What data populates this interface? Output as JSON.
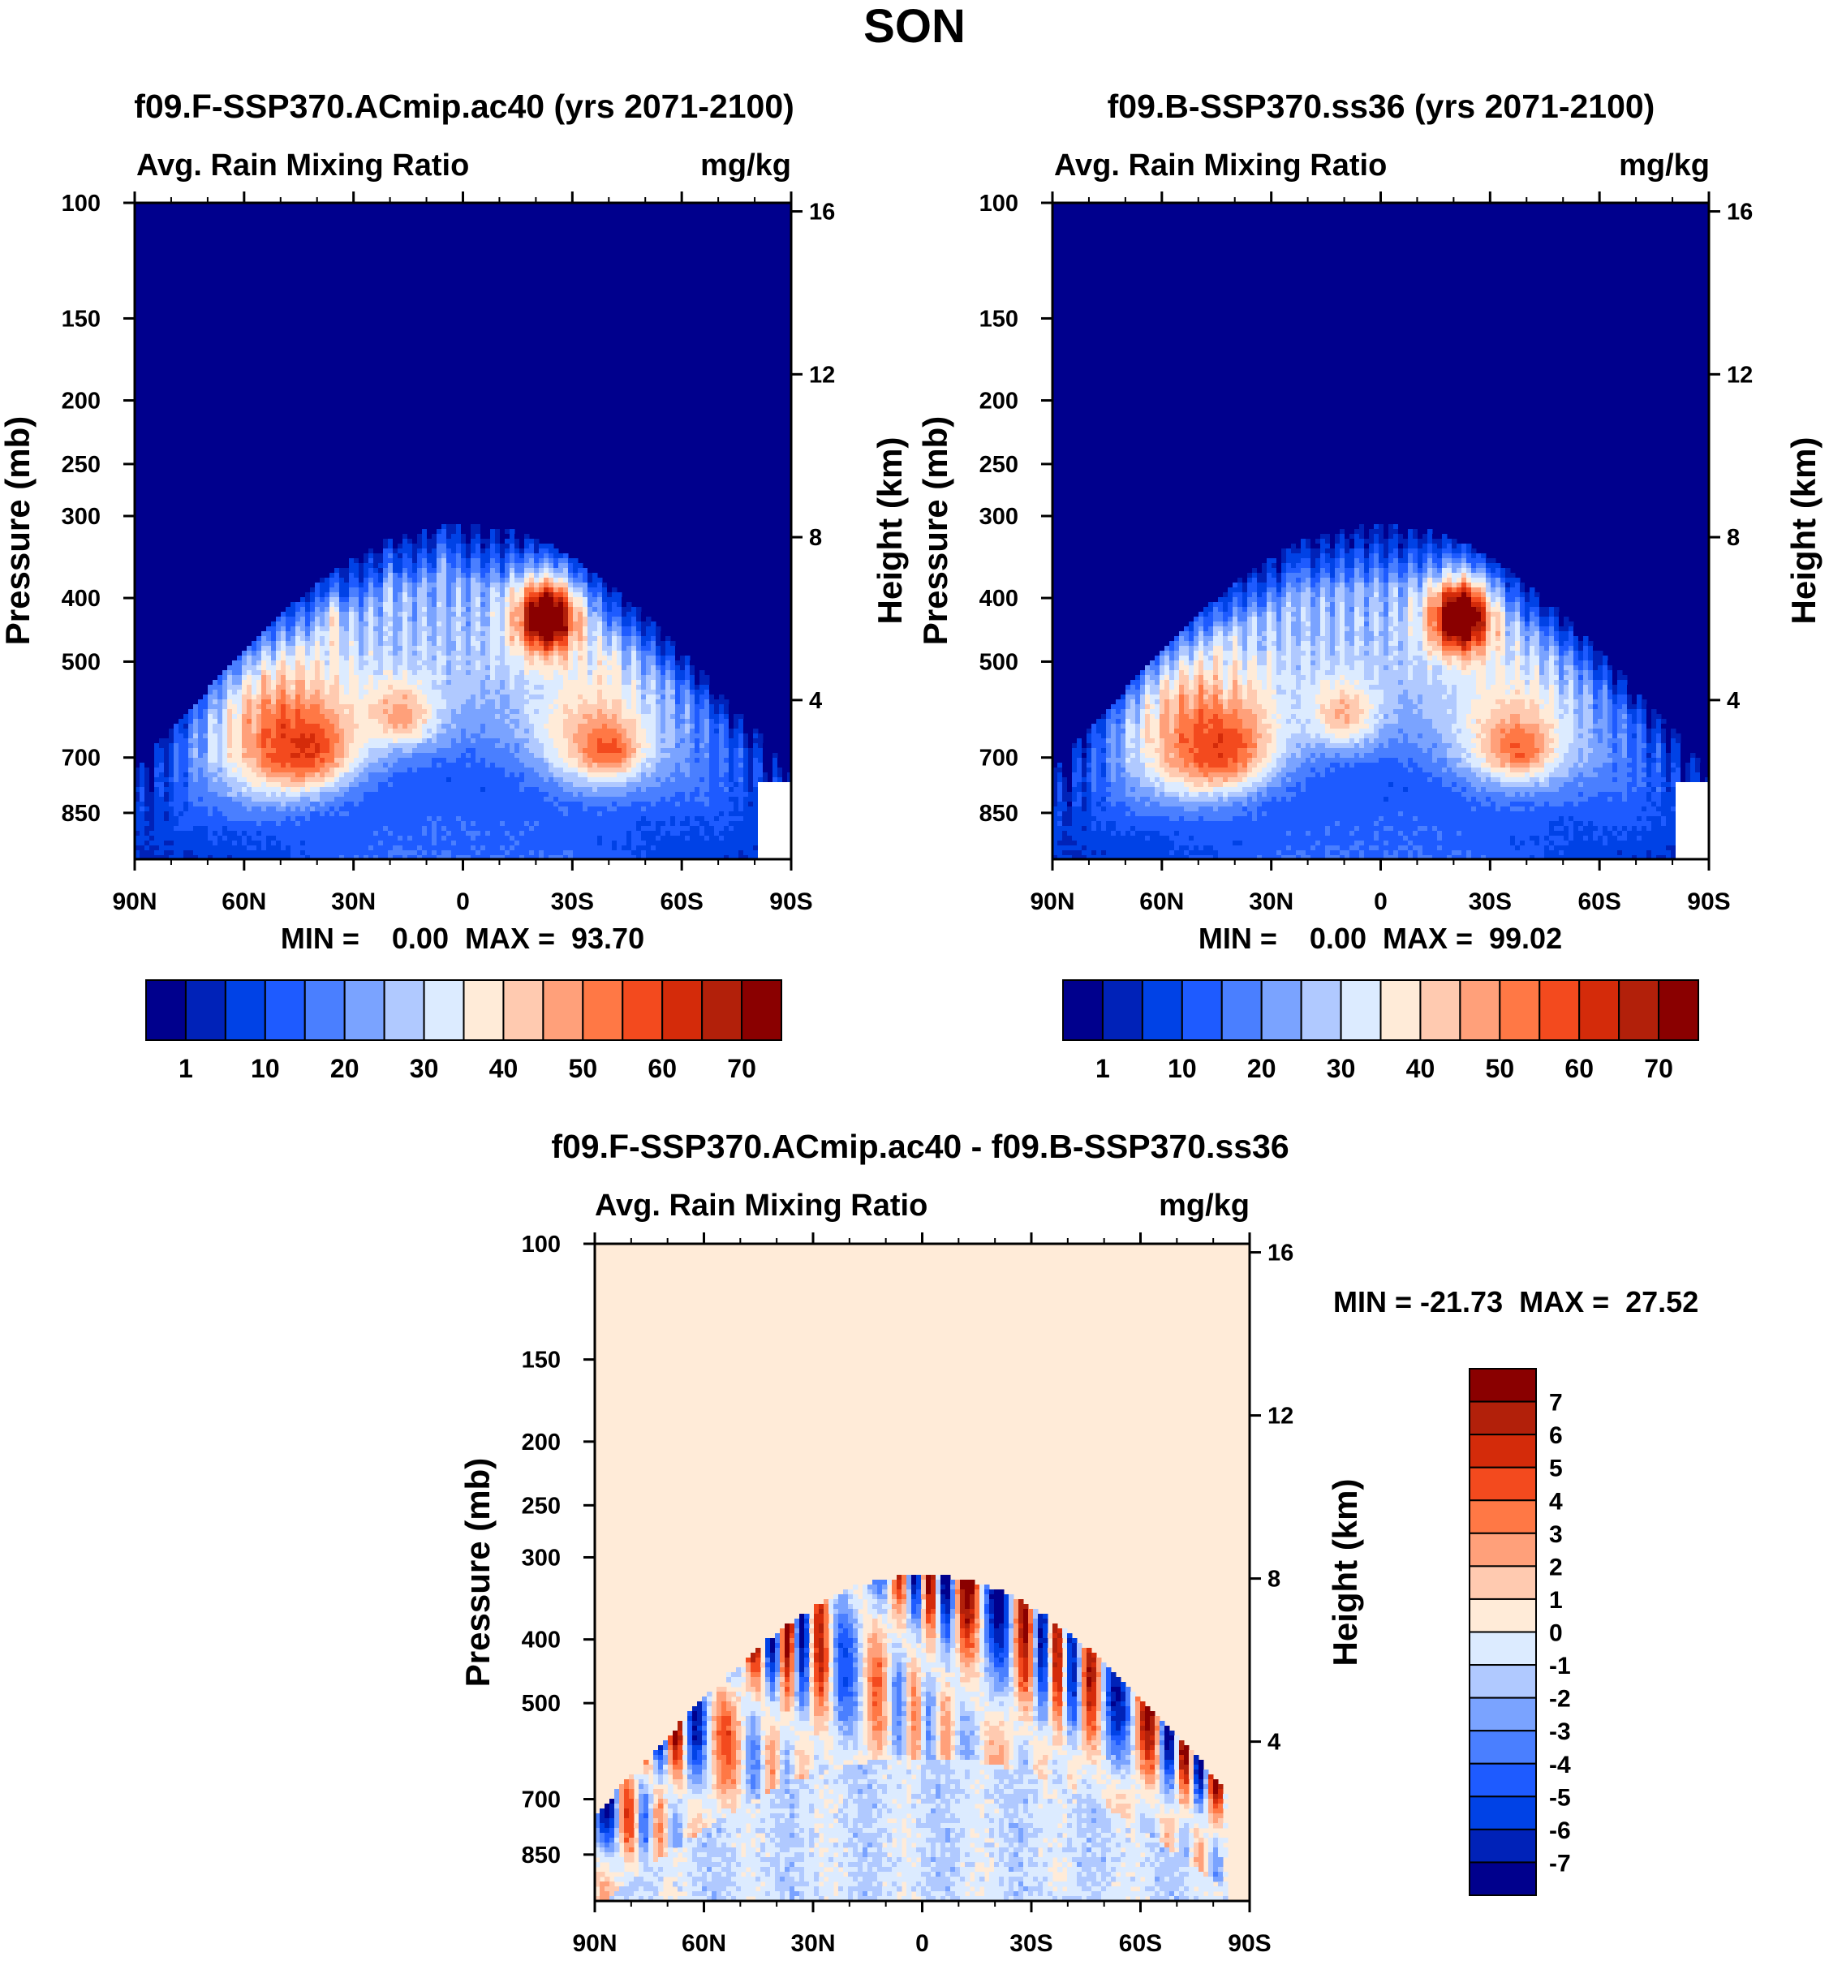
{
  "figure_title": "SON",
  "chart_data": [
    {
      "type": "heatmap",
      "title": "f09.F-SSP370.ACmip.ac40 (yrs 2071-2100)",
      "variable": "Avg. Rain Mixing Ratio",
      "units": "mg/kg",
      "ylabel": "Pressure (mb)",
      "ylabel_right": "Height (km)",
      "x_ticks": [
        "90N",
        "60N",
        "30N",
        "0",
        "30S",
        "60S",
        "90S"
      ],
      "y_ticks": [
        "100",
        "150",
        "200",
        "250",
        "300",
        "400",
        "500",
        "700",
        "850"
      ],
      "height_ticks": [
        "16",
        "12",
        "8",
        "4"
      ],
      "stats": "MIN =    0.00  MAX =  93.70",
      "colorbar_labels": [
        "1",
        "10",
        "20",
        "30",
        "40",
        "50",
        "60",
        "70"
      ],
      "blobs": [
        {
          "lat": 49,
          "p": 640,
          "rx": 20,
          "rp": 170,
          "v": 50
        },
        {
          "lat": 44,
          "p": 680,
          "rx": 12,
          "rp": 90,
          "v": 62
        },
        {
          "lat": 17,
          "p": 600,
          "rx": 10,
          "rp": 70,
          "v": 48
        },
        {
          "lat": -36,
          "p": 650,
          "rx": 16,
          "rp": 140,
          "v": 46
        },
        {
          "lat": -40,
          "p": 680,
          "rx": 7,
          "rp": 55,
          "v": 58
        },
        {
          "lat": -23,
          "p": 430,
          "rx": 9,
          "rp": 60,
          "v": 75
        },
        {
          "lat": -23,
          "p": 430,
          "rx": 4,
          "rp": 28,
          "v": 88
        },
        {
          "lat": 36,
          "p": 450,
          "rx": 2,
          "rp": 55,
          "v": 38
        },
        {
          "lat": -40,
          "p": 520,
          "rx": 2,
          "rp": 40,
          "v": 40
        },
        {
          "lat": 20,
          "p": 420,
          "rx": 2,
          "rp": 60,
          "v": 27
        },
        {
          "lat": 5,
          "p": 390,
          "rx": 2,
          "rp": 70,
          "v": 25
        },
        {
          "lat": 0,
          "p": 900,
          "rx": 45,
          "rp": 120,
          "v": 14
        }
      ]
    },
    {
      "type": "heatmap",
      "title": "f09.B-SSP370.ss36 (yrs 2071-2100)",
      "variable": "Avg. Rain Mixing Ratio",
      "units": "mg/kg",
      "ylabel": "Pressure (mb)",
      "ylabel_right": "Height (km)",
      "x_ticks": [
        "90N",
        "60N",
        "30N",
        "0",
        "30S",
        "60S",
        "90S"
      ],
      "y_ticks": [
        "100",
        "150",
        "200",
        "250",
        "300",
        "400",
        "500",
        "700",
        "850"
      ],
      "height_ticks": [
        "16",
        "12",
        "8",
        "4"
      ],
      "stats": "MIN =    0.00  MAX =  99.02",
      "colorbar_labels": [
        "1",
        "10",
        "20",
        "30",
        "40",
        "50",
        "60",
        "70"
      ],
      "blobs": [
        {
          "lat": 49,
          "p": 640,
          "rx": 20,
          "rp": 170,
          "v": 50
        },
        {
          "lat": 44,
          "p": 680,
          "rx": 12,
          "rp": 90,
          "v": 60
        },
        {
          "lat": 10,
          "p": 600,
          "rx": 9,
          "rp": 70,
          "v": 46
        },
        {
          "lat": -36,
          "p": 650,
          "rx": 16,
          "rp": 140,
          "v": 45
        },
        {
          "lat": -38,
          "p": 680,
          "rx": 7,
          "rp": 55,
          "v": 56
        },
        {
          "lat": -22,
          "p": 430,
          "rx": 9,
          "rp": 60,
          "v": 75
        },
        {
          "lat": -22,
          "p": 430,
          "rx": 4,
          "rp": 28,
          "v": 92
        },
        {
          "lat": 43,
          "p": 520,
          "rx": 2,
          "rp": 50,
          "v": 36
        },
        {
          "lat": 23,
          "p": 420,
          "rx": 2,
          "rp": 60,
          "v": 27
        },
        {
          "lat": 0,
          "p": 900,
          "rx": 45,
          "rp": 120,
          "v": 14
        }
      ]
    },
    {
      "type": "heatmap",
      "title": "f09.F-SSP370.ACmip.ac40 - f09.B-SSP370.ss36",
      "variable": "Avg. Rain Mixing Ratio",
      "units": "mg/kg",
      "ylabel": "Pressure (mb)",
      "ylabel_right": "Height (km)",
      "x_ticks": [
        "90N",
        "60N",
        "30N",
        "0",
        "30S",
        "60S",
        "90S"
      ],
      "y_ticks": [
        "100",
        "150",
        "200",
        "250",
        "300",
        "400",
        "500",
        "700",
        "850"
      ],
      "height_ticks": [
        "16",
        "12",
        "8",
        "4"
      ],
      "stats": "MIN = -21.73  MAX =  27.52",
      "colorbar_labels": [
        "7",
        "6",
        "5",
        "4",
        "3",
        "2",
        "1",
        "0",
        "-1",
        "-2",
        "-3",
        "-4",
        "-5",
        "-6",
        "-7"
      ]
    }
  ],
  "colors": {
    "seq": [
      "#00008d",
      "#0022b8",
      "#0042e6",
      "#1e5bff",
      "#4a7fff",
      "#7aa3ff",
      "#b0c9ff",
      "#dcebff",
      "#ffebd8",
      "#ffcab0",
      "#ffa07a",
      "#ff7845",
      "#f34a1e",
      "#d42b0a",
      "#b2200a",
      "#8a0000"
    ],
    "diff": [
      "#8a0000",
      "#b2200a",
      "#d42b0a",
      "#f34a1e",
      "#ff7845",
      "#ffa07a",
      "#ffcab0",
      "#ffebd8",
      "#dcebff",
      "#b0c9ff",
      "#7aa3ff",
      "#4a7fff",
      "#1e5bff",
      "#0042e6",
      "#0022b8",
      "#00008d"
    ]
  }
}
